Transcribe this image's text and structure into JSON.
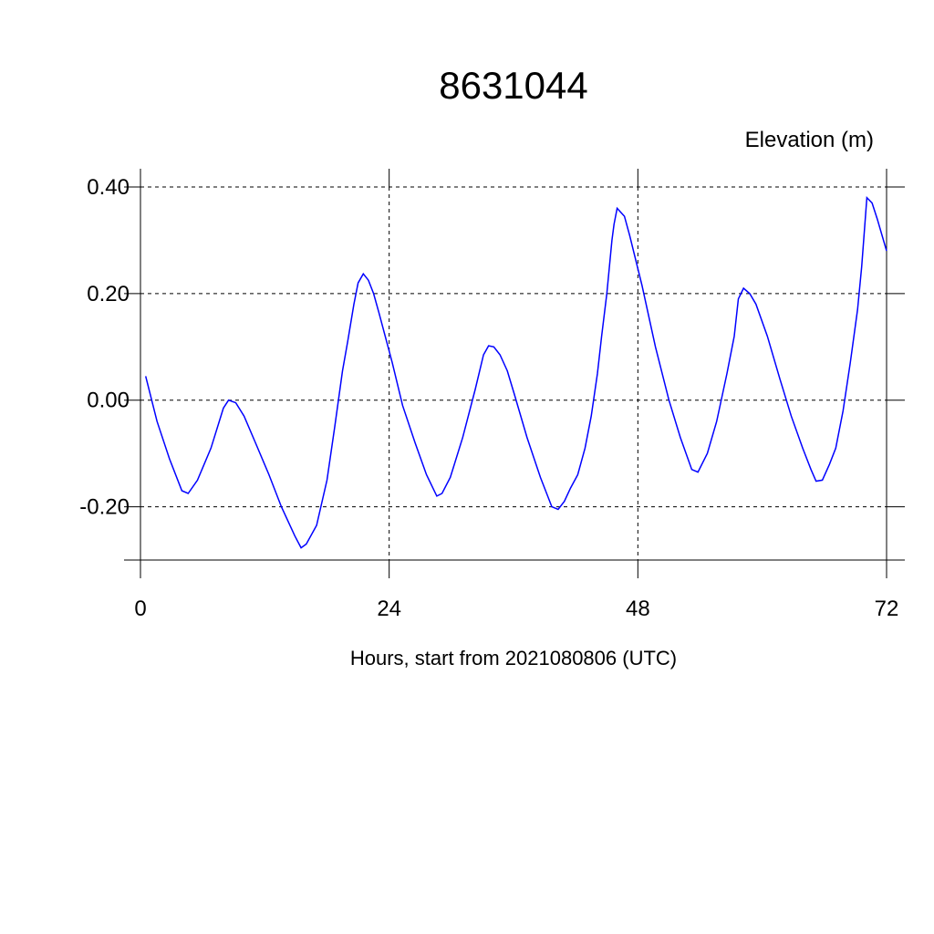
{
  "chart_data": {
    "type": "line",
    "title": "8631044",
    "y_label": "Elevation (m)",
    "x_label": "Hours, start from 2021080806 (UTC)",
    "x": [
      0.5,
      1.6,
      2.8,
      4.0,
      4.6,
      5.5,
      6.8,
      8.0,
      8.5,
      9.2,
      10.0,
      11.1,
      12.4,
      13.6,
      14.9,
      15.5,
      16.0,
      17.0,
      18.0,
      18.75,
      19.5,
      20.0,
      20.6,
      21.0,
      21.5,
      22.0,
      22.5,
      23.0,
      24.3,
      25.3,
      26.5,
      27.6,
      28.6,
      29.1,
      29.9,
      31.1,
      32.3,
      33.1,
      33.6,
      34.1,
      34.7,
      35.4,
      36.1,
      37.3,
      38.6,
      39.7,
      40.3,
      40.9,
      41.5,
      42.2,
      42.9,
      43.5,
      44.1,
      44.5,
      45.0,
      45.5,
      45.7,
      46.0,
      46.7,
      47.2,
      48.4,
      49.7,
      51.0,
      52.1,
      53.2,
      53.8,
      54.7,
      55.6,
      56.6,
      57.3,
      57.7,
      58.2,
      58.8,
      59.4,
      60.5,
      61.7,
      62.8,
      63.9,
      64.7,
      65.2,
      65.8,
      66.5,
      67.1,
      67.8,
      68.5,
      69.2,
      69.6,
      70.1,
      70.6,
      71.1,
      72.0
    ],
    "series": [
      {
        "name": "Elevation",
        "color": "#0000ff",
        "values": [
          0.045,
          -0.04,
          -0.11,
          -0.17,
          -0.175,
          -0.15,
          -0.09,
          -0.015,
          0.0,
          -0.005,
          -0.03,
          -0.08,
          -0.14,
          -0.2,
          -0.255,
          -0.277,
          -0.27,
          -0.235,
          -0.15,
          -0.05,
          0.055,
          0.11,
          0.18,
          0.22,
          0.237,
          0.225,
          0.2,
          0.165,
          0.07,
          -0.01,
          -0.08,
          -0.14,
          -0.18,
          -0.175,
          -0.145,
          -0.07,
          0.02,
          0.085,
          0.102,
          0.1,
          0.085,
          0.055,
          0.01,
          -0.07,
          -0.145,
          -0.2,
          -0.205,
          -0.19,
          -0.165,
          -0.14,
          -0.09,
          -0.03,
          0.05,
          0.12,
          0.2,
          0.3,
          0.33,
          0.36,
          0.345,
          0.31,
          0.215,
          0.1,
          0.0,
          -0.07,
          -0.13,
          -0.135,
          -0.1,
          -0.04,
          0.05,
          0.12,
          0.19,
          0.21,
          0.2,
          0.18,
          0.12,
          0.04,
          -0.03,
          -0.09,
          -0.13,
          -0.152,
          -0.15,
          -0.12,
          -0.09,
          -0.02,
          0.07,
          0.17,
          0.25,
          0.38,
          0.37,
          0.34,
          0.28
        ]
      }
    ],
    "xlim": [
      0,
      72
    ],
    "xticks": [
      0,
      24,
      48,
      72
    ],
    "ylim": [
      -0.3,
      0.4
    ],
    "yticks": [
      {
        "value": -0.2,
        "label": "-0.20"
      },
      {
        "value": 0,
        "label": "0.00"
      },
      {
        "value": 0.2,
        "label": "0.20"
      },
      {
        "value": 0.4,
        "label": "0.40"
      }
    ],
    "grid": true
  }
}
